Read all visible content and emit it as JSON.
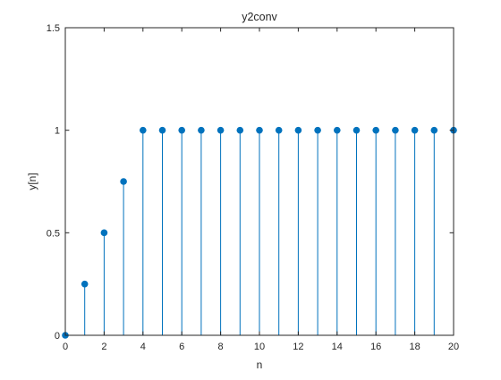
{
  "chart_data": {
    "type": "stem",
    "title": "y2conv",
    "xlabel": "n",
    "ylabel": "y[n]",
    "xlim": [
      0,
      20
    ],
    "ylim": [
      0,
      1.5
    ],
    "xticks": [
      0,
      2,
      4,
      6,
      8,
      10,
      12,
      14,
      16,
      18,
      20
    ],
    "xtick_labels": [
      "0",
      "2",
      "4",
      "6",
      "8",
      "10",
      "12",
      "14",
      "16",
      "18",
      "20"
    ],
    "yticks": [
      0,
      0.5,
      1,
      1.5
    ],
    "ytick_labels": [
      "0",
      "0.5",
      "1",
      "1.5"
    ],
    "grid": false,
    "color": "#0072BD",
    "x": [
      0,
      1,
      2,
      3,
      4,
      5,
      6,
      7,
      8,
      9,
      10,
      11,
      12,
      13,
      14,
      15,
      16,
      17,
      18,
      19,
      20
    ],
    "y": [
      0,
      0.25,
      0.5,
      0.75,
      1,
      1,
      1,
      1,
      1,
      1,
      1,
      1,
      1,
      1,
      1,
      1,
      1,
      1,
      1,
      1,
      1
    ]
  }
}
